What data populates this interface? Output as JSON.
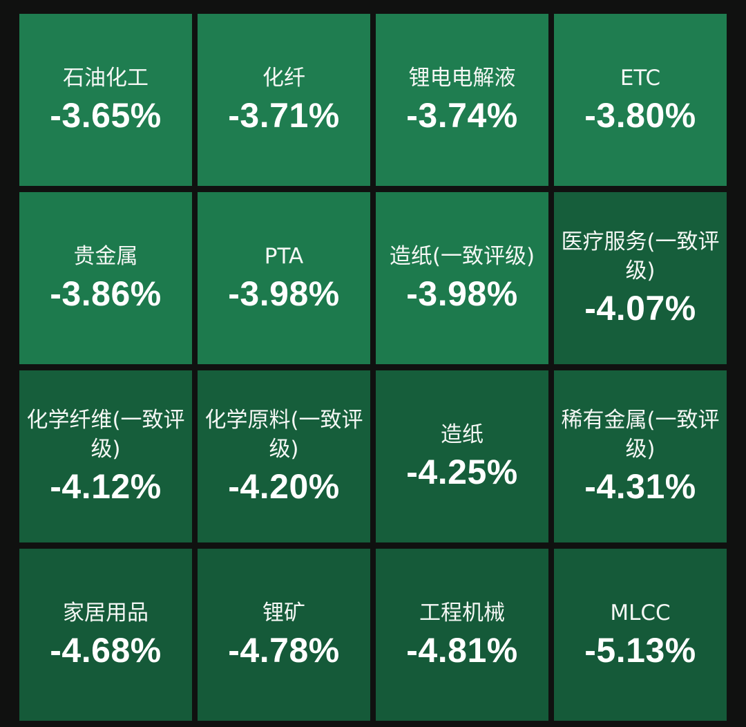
{
  "tiles": [
    {
      "name": "石油化工",
      "change": "-3.65%",
      "color": "#1f7d50"
    },
    {
      "name": "化纤",
      "change": "-3.71%",
      "color": "#1f7d50"
    },
    {
      "name": "锂电电解液",
      "change": "-3.74%",
      "color": "#1f7d50"
    },
    {
      "name": "ETC",
      "change": "-3.80%",
      "color": "#1f7d50"
    },
    {
      "name": "贵金属",
      "change": "-3.86%",
      "color": "#1d7a4d"
    },
    {
      "name": "PTA",
      "change": "-3.98%",
      "color": "#1d7a4d"
    },
    {
      "name": "造纸(一致评级)",
      "change": "-3.98%",
      "color": "#1d7a4d"
    },
    {
      "name": "医疗服务(一致评级)",
      "change": "-4.07%",
      "color": "#165e3b"
    },
    {
      "name": "化学纤维(一致评级)",
      "change": "-4.12%",
      "color": "#165e3b"
    },
    {
      "name": "化学原料(一致评级)",
      "change": "-4.20%",
      "color": "#165e3b"
    },
    {
      "name": "造纸",
      "change": "-4.25%",
      "color": "#165e3b"
    },
    {
      "name": "稀有金属(一致评级)",
      "change": "-4.31%",
      "color": "#165e3b"
    },
    {
      "name": "家居用品",
      "change": "-4.68%",
      "color": "#155a39"
    },
    {
      "name": "锂矿",
      "change": "-4.78%",
      "color": "#155a39"
    },
    {
      "name": "工程机械",
      "change": "-4.81%",
      "color": "#155a39"
    },
    {
      "name": "MLCC",
      "change": "-5.13%",
      "color": "#155a39"
    }
  ]
}
